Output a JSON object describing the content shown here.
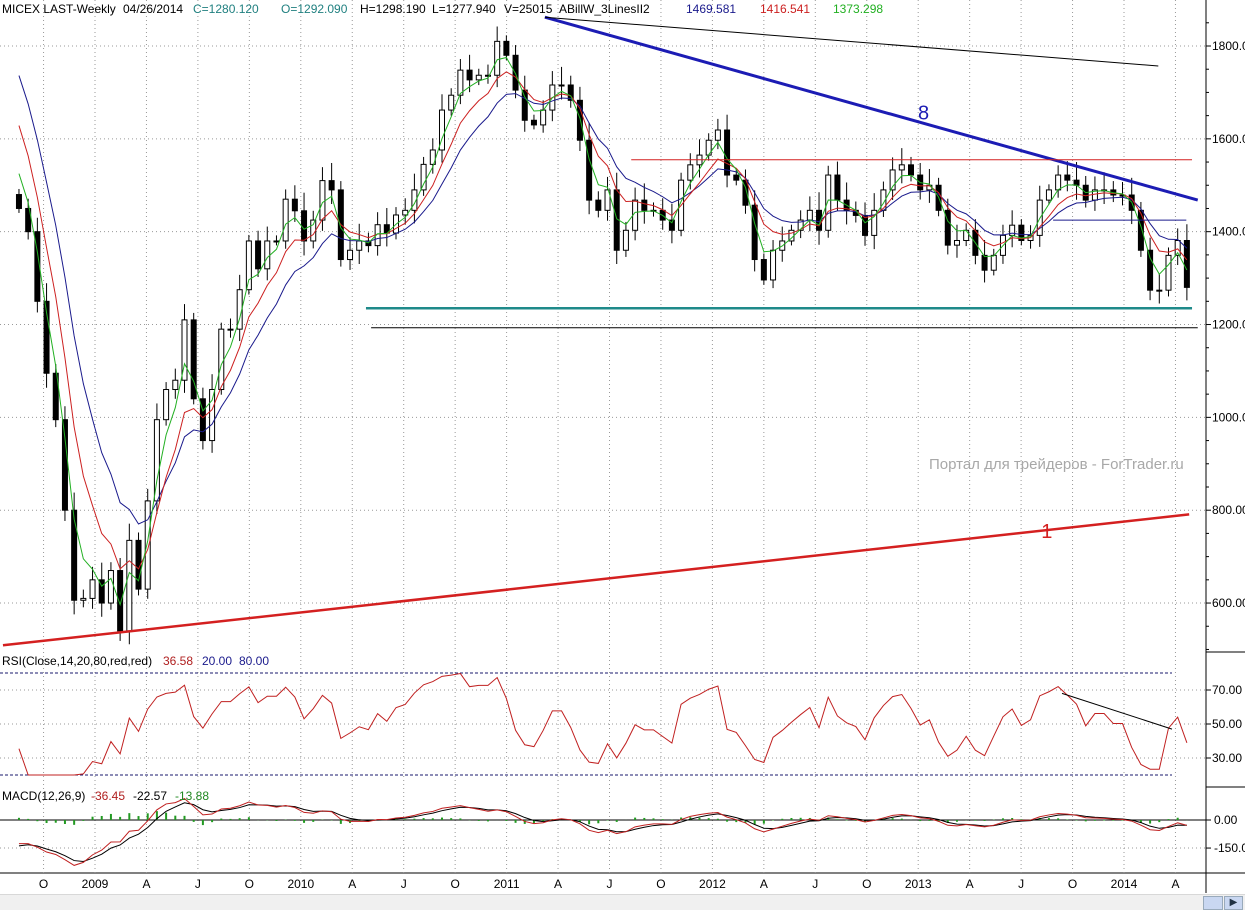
{
  "header": {
    "symbol": "MICEX LAST-Weekly",
    "date": "04/26/2014",
    "close": "C=1280.120",
    "open": "O=1292.090",
    "high": "H=1298.190",
    "low": "L=1277.940",
    "volume": "V=25015",
    "indicator": "ABillW_3LinesII2",
    "line_blue": "1469.581",
    "line_red": "1416.541",
    "line_green": "1373.298"
  },
  "rsi_header": {
    "label": "RSI(Close,14,20,80,red,red)",
    "value": "36.58",
    "low": "20.00",
    "high": "80.00"
  },
  "macd_header": {
    "label": "MACD(12,26,9)",
    "macd": "-36.45",
    "signal": "-22.57",
    "hist": "-13.88"
  },
  "watermark": "Портал для трейдеров - ForTrader.ru",
  "colors": {
    "blue_ma": "#1a1a8c",
    "red_ma": "#cc2020",
    "green_ma": "#22b022",
    "trend_blue": "#1c1cb4",
    "trend_red": "#d42020",
    "support_teal": "#1f8a8a",
    "rsi": "#c02020",
    "macd_hist": "#229922"
  },
  "chart_data": {
    "type": "candlestick",
    "title": "MICEX LAST-Weekly",
    "start_date": "2008-08-18",
    "end_date": "2014-04-21",
    "ylim": [
      475,
      1890
    ],
    "price_ticks": [
      "1800.00",
      "1600.00",
      "1400.00",
      "1200.00",
      "1000.00",
      "800.00",
      "600.00"
    ],
    "price_tick_values": [
      1800,
      1600,
      1400,
      1200,
      1000,
      800,
      600
    ],
    "x_ticks": [
      "O",
      "2009",
      "A",
      "J",
      "O",
      "2010",
      "A",
      "J",
      "O",
      "2011",
      "A",
      "J",
      "O",
      "2012",
      "A",
      "J",
      "O",
      "2013",
      "A",
      "J",
      "O",
      "2014",
      "A"
    ],
    "x_tick_dates": [
      "2008-10",
      "2009-01",
      "2009-04",
      "2009-07",
      "2009-10",
      "2010-01",
      "2010-04",
      "2010-07",
      "2010-10",
      "2011-01",
      "2011-04",
      "2011-07",
      "2011-10",
      "2012-01",
      "2012-04",
      "2012-07",
      "2012-10",
      "2013-01",
      "2013-04",
      "2013-07",
      "2013-10",
      "2014-01",
      "2014-04"
    ],
    "closes": [
      1450,
      1400,
      1250,
      1095,
      995,
      800,
      606,
      610,
      650,
      600,
      670,
      540,
      735,
      630,
      820,
      995,
      1060,
      1080,
      1210,
      1040,
      950,
      1060,
      1190,
      1190,
      1275,
      1380,
      1320,
      1380,
      1380,
      1470,
      1445,
      1380,
      1425,
      1510,
      1490,
      1340,
      1360,
      1380,
      1370,
      1415,
      1397,
      1436,
      1446,
      1490,
      1545,
      1576,
      1662,
      1694,
      1748,
      1727,
      1737,
      1737,
      1810,
      1780,
      1705,
      1640,
      1630,
      1662,
      1716,
      1716,
      1683,
      1597,
      1468,
      1446,
      1490,
      1360,
      1403,
      1468,
      1446,
      1446,
      1425,
      1403,
      1511,
      1544,
      1565,
      1597,
      1619,
      1522,
      1511,
      1457,
      1340,
      1296,
      1360,
      1380,
      1403,
      1425,
      1446,
      1403,
      1522,
      1468,
      1446,
      1435,
      1392,
      1446,
      1490,
      1533,
      1544,
      1522,
      1490,
      1500,
      1446,
      1371,
      1381,
      1403,
      1349,
      1317,
      1349,
      1392,
      1414,
      1381,
      1392,
      1468,
      1490,
      1522,
      1511,
      1500,
      1468,
      1490,
      1490,
      1479,
      1479,
      1446,
      1360,
      1274,
      1274,
      1349,
      1381,
      1280
    ],
    "trendlines": [
      {
        "label": "8",
        "color": "blue",
        "from": [
          "2011-03-08",
          1862
        ],
        "to": [
          "2014-05-10",
          1468
        ]
      },
      {
        "label": "1",
        "color": "red",
        "from": [
          "2008-07-20",
          509
        ],
        "to": [
          "2014-04-25",
          791
        ]
      },
      {
        "label": "",
        "color": "black",
        "from": [
          "2011-03-08",
          1862
        ],
        "to": [
          "2014-03-01",
          1757
        ]
      },
      {
        "label": "",
        "color": "red-thin",
        "from": [
          "2011-08-09",
          1555
        ],
        "to": [
          "2014-04-30",
          1555
        ]
      },
      {
        "label": "",
        "color": "teal",
        "from": [
          "2010-04-25",
          1235
        ],
        "to": [
          "2014-04-30",
          1235
        ]
      },
      {
        "label": "",
        "color": "black-thin",
        "from": [
          "2010-05-04",
          1193
        ],
        "to": [
          "2014-05-10",
          1193
        ]
      },
      {
        "label": "",
        "color": "blue-thin",
        "from": [
          "2013-08-27",
          1425
        ],
        "to": [
          "2014-04-20",
          1425
        ]
      }
    ],
    "rsi": {
      "ticks": [
        "70.00",
        "50.00",
        "30.00"
      ],
      "tick_values": [
        70,
        50,
        30
      ],
      "levels": [
        20,
        80
      ]
    },
    "macd": {
      "ticks": [
        "0.00",
        "-150.0"
      ],
      "tick_values": [
        0,
        -150
      ]
    }
  }
}
